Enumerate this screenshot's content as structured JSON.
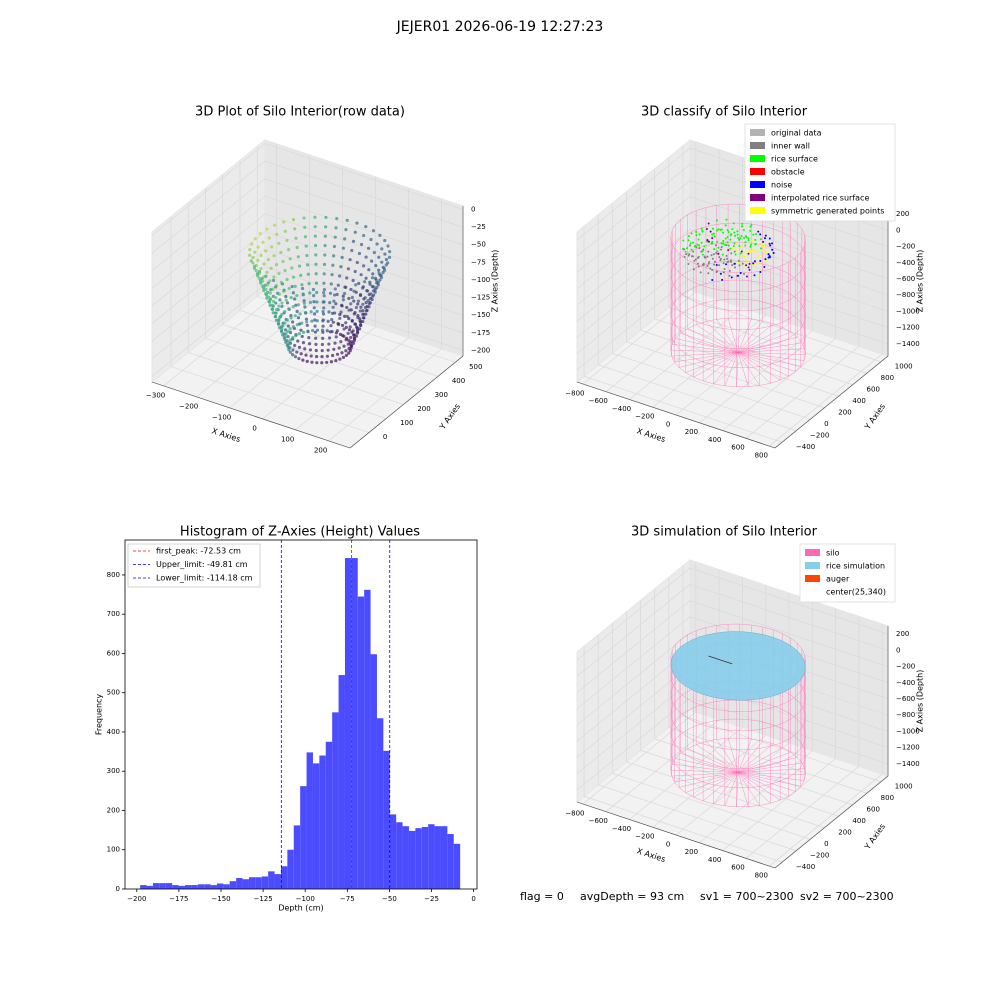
{
  "suptitle": "JEJER01 2026-06-19 12:27:23",
  "footer": [
    "flag = 0",
    "avgDepth = 93 cm",
    "sv1 = 700~2300",
    "sv2 = 700~2300"
  ],
  "chart_data": [
    {
      "type": "scatter3d",
      "title": "3D Plot of Silo Interior(row data)",
      "xlabel": "X Axies",
      "ylabel": "Y Axies",
      "zlabel": "Z Axies (Depth)",
      "xlim": [
        -335,
        265
      ],
      "ylim": [
        -110,
        545
      ],
      "zlim": [
        -208,
        5
      ],
      "xticks": [
        {
          "value": -300,
          "label": "−300"
        },
        {
          "value": -200,
          "label": "−200"
        },
        {
          "value": -100,
          "label": "−100"
        },
        0,
        100,
        200
      ],
      "yticks": [
        0,
        100,
        200,
        300,
        400,
        500
      ],
      "zticks": [
        0,
        {
          "value": -25,
          "label": "−25"
        },
        {
          "value": -50,
          "label": "−50"
        },
        {
          "value": -75,
          "label": "−75"
        },
        {
          "value": -100,
          "label": "−100"
        },
        {
          "value": -125,
          "label": "−125"
        },
        {
          "value": -150,
          "label": "−150"
        },
        {
          "value": -175,
          "label": "−175"
        },
        {
          "value": -200,
          "label": "−200"
        }
      ]
    },
    {
      "type": "scatter3d",
      "title": "3D classify of Silo Interior",
      "xlabel": "X Axies",
      "ylabel": "Y Axies",
      "zlabel": "Z Axies (Depth)",
      "xlim": [
        -850,
        850
      ],
      "ylim": [
        -500,
        1100
      ],
      "zlim": [
        -1550,
        300
      ],
      "xticks": [
        {
          "value": -800,
          "label": "−800"
        },
        {
          "value": -600,
          "label": "−600"
        },
        {
          "value": -400,
          "label": "−400"
        },
        {
          "value": -200,
          "label": "−200"
        },
        0,
        200,
        400,
        600,
        800
      ],
      "yticks": [
        {
          "value": -400,
          "label": "−400"
        },
        {
          "value": -200,
          "label": "−200"
        },
        0,
        200,
        400,
        600,
        800,
        1000
      ],
      "zticks": [
        200,
        0,
        {
          "value": -200,
          "label": "−200"
        },
        {
          "value": -400,
          "label": "−400"
        },
        {
          "value": -600,
          "label": "−600"
        },
        {
          "value": -800,
          "label": "−800"
        },
        {
          "value": -1000,
          "label": "−1000"
        },
        {
          "value": -1200,
          "label": "−1200"
        },
        {
          "value": -1400,
          "label": "−1400"
        }
      ],
      "legend": [
        {
          "name": "original data",
          "color": "#b3b3b3"
        },
        {
          "name": "inner wall",
          "color": "#808080"
        },
        {
          "name": "rice surface",
          "color": "#00ff00"
        },
        {
          "name": "obstacle",
          "color": "#ff0000"
        },
        {
          "name": "noise",
          "color": "#0000ff"
        },
        {
          "name": "interpolated rice surface",
          "color": "#800080"
        },
        {
          "name": "symmetric generated points",
          "color": "#ffff00"
        }
      ]
    },
    {
      "type": "surface3d",
      "title": "3D simulation of Silo Interior",
      "xlabel": "X Axies",
      "ylabel": "Y Axies",
      "zlabel": "Z Axies (Depth)",
      "xlim": [
        -850,
        850
      ],
      "ylim": [
        -500,
        1100
      ],
      "zlim": [
        -1550,
        300
      ],
      "xticks": [
        {
          "value": -800,
          "label": "−800"
        },
        {
          "value": -600,
          "label": "−600"
        },
        {
          "value": -400,
          "label": "−400"
        },
        {
          "value": -200,
          "label": "−200"
        },
        0,
        200,
        400,
        600,
        800
      ],
      "yticks": [
        {
          "value": -400,
          "label": "−400"
        },
        {
          "value": -200,
          "label": "−200"
        },
        0,
        200,
        400,
        600,
        800,
        1000
      ],
      "zticks": [
        200,
        0,
        {
          "value": -200,
          "label": "−200"
        },
        {
          "value": -400,
          "label": "−400"
        },
        {
          "value": -600,
          "label": "−600"
        },
        {
          "value": -800,
          "label": "−800"
        },
        {
          "value": -1000,
          "label": "−1000"
        },
        {
          "value": -1200,
          "label": "−1200"
        },
        {
          "value": -1400,
          "label": "−1400"
        }
      ],
      "legend": [
        {
          "name": "silo",
          "color": "#ff69b4"
        },
        {
          "name": "rice simulation",
          "color": "#87ceeb"
        },
        {
          "name": "auger",
          "color": "#ff4500"
        },
        {
          "name": "center(25,340)"
        }
      ]
    },
    {
      "type": "histogram",
      "title": "Histogram of Z-Axies (Height) Values",
      "xlabel": "Depth (cm)",
      "ylabel": "Frequency",
      "color": "#4c4cff",
      "bins": [
        -198,
        -194.2,
        -190.4,
        -186.6,
        -182.8,
        -179,
        -175.2,
        -171.4,
        -167.6,
        -163.8,
        -160,
        -156.2,
        -152.4,
        -148.6,
        -144.8,
        -141,
        -137.2,
        -133.4,
        -129.6,
        -125.8,
        -122,
        -118.2,
        -114.4,
        -110.6,
        -106.8,
        -103,
        -99.2,
        -95.4,
        -91.6,
        -87.8,
        -84,
        -80.2,
        -76.4,
        -72.6,
        -68.8,
        -65,
        -61.2,
        -57.4,
        -53.6,
        -49.8,
        -46,
        -42.2,
        -38.4,
        -34.6,
        -30.8,
        -27,
        -23.2,
        -19.4,
        -15.6,
        -11.8,
        -8
      ],
      "values": [
        10,
        8,
        15,
        15,
        15,
        10,
        8,
        10,
        10,
        12,
        12,
        10,
        14,
        12,
        20,
        28,
        25,
        30,
        30,
        32,
        45,
        38,
        58,
        100,
        162,
        262,
        348,
        320,
        340,
        375,
        450,
        545,
        843,
        843,
        745,
        762,
        598,
        435,
        352,
        190,
        170,
        160,
        148,
        155,
        158,
        165,
        160,
        160,
        140,
        115
      ],
      "lines": [
        {
          "value": -72.53,
          "label": "first_peak: -72.53 cm",
          "color": "#ff0000"
        },
        {
          "value": -49.81,
          "label": "Upper_limit: -49.81 cm",
          "color": "#0000ff"
        },
        {
          "value": -114.18,
          "label": "Lower_limit: -114.18 cm",
          "color": "#0000ff"
        }
      ],
      "xlim": [
        -207,
        2
      ],
      "ylim": [
        0,
        889
      ],
      "xticks": [
        {
          "value": -200,
          "label": "−200"
        },
        {
          "value": -175,
          "label": "−175"
        },
        {
          "value": -150,
          "label": "−150"
        },
        {
          "value": -125,
          "label": "−125"
        },
        {
          "value": -100,
          "label": "−100"
        },
        {
          "value": -75,
          "label": "−75"
        },
        {
          "value": -50,
          "label": "−50"
        },
        {
          "value": -25,
          "label": "−25"
        },
        0
      ],
      "yticks": [
        0,
        100,
        200,
        300,
        400,
        500,
        600,
        700,
        800
      ]
    }
  ]
}
